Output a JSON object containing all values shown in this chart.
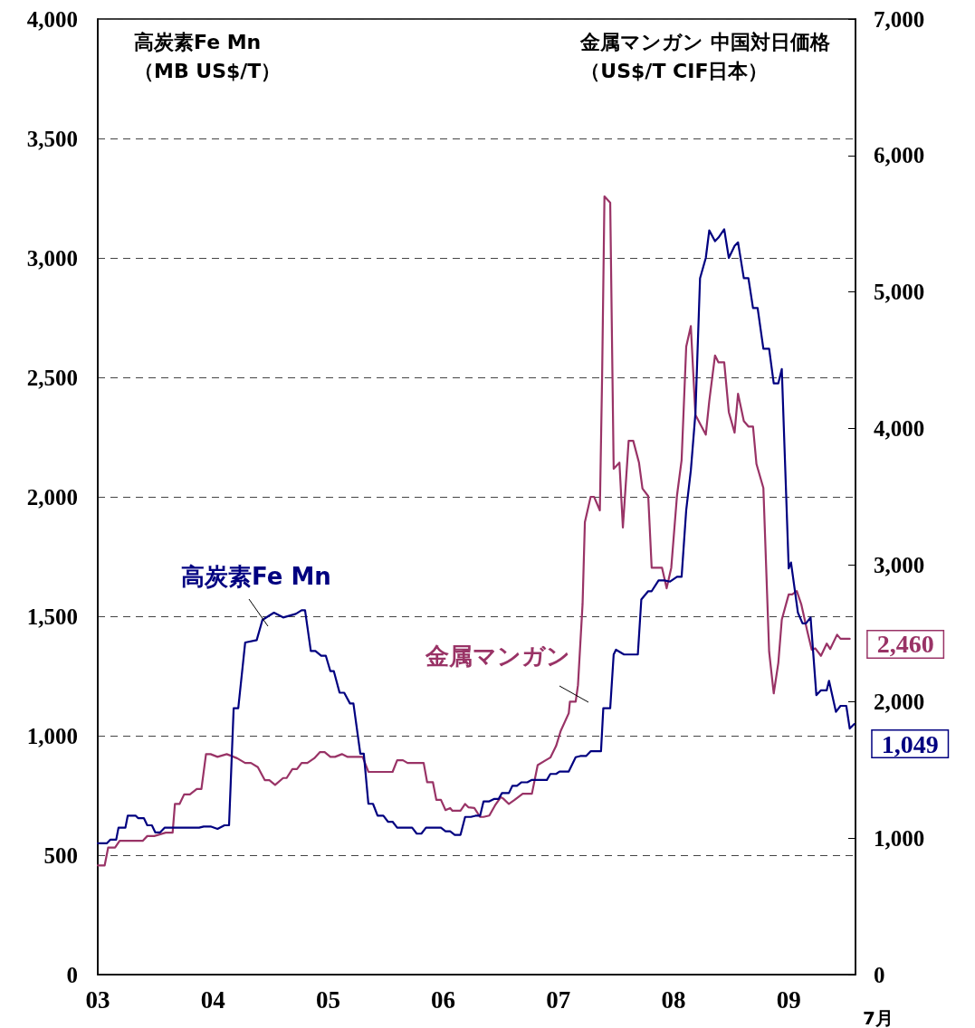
{
  "chart_data": {
    "type": "line",
    "ylabel": "高炭素Fe Mn（MB US$/T）",
    "y2label": "金属マンガン 中国対日価格（US$/T CIF日本）",
    "xlabel": "7月",
    "xlim": [
      2003,
      2009.58
    ],
    "xticks": [
      {
        "value": 2003,
        "label": "03"
      },
      {
        "value": 2004,
        "label": "04"
      },
      {
        "value": 2005,
        "label": "05"
      },
      {
        "value": 2006,
        "label": "06"
      },
      {
        "value": 2007,
        "label": "07"
      },
      {
        "value": 2008,
        "label": "08"
      },
      {
        "value": 2009,
        "label": "09"
      }
    ],
    "ylim": [
      0,
      4000
    ],
    "yticks": [
      0,
      {
        "value": 500,
        "label": "500"
      },
      {
        "value": 1000,
        "label": "1,000"
      },
      {
        "value": 1500,
        "label": "1,500"
      },
      {
        "value": 2000,
        "label": "2,000"
      },
      {
        "value": 2500,
        "label": "2,500"
      },
      {
        "value": 3000,
        "label": "3,000"
      },
      {
        "value": 3500,
        "label": "3,500"
      },
      {
        "value": 4000,
        "label": "4,000"
      }
    ],
    "y2lim": [
      0,
      7000
    ],
    "y2ticks": [
      0,
      {
        "value": 1000,
        "label": "1,000"
      },
      {
        "value": 2000,
        "label": "2,000"
      },
      {
        "value": 3000,
        "label": "3,000"
      },
      {
        "value": 4000,
        "label": "4,000"
      },
      {
        "value": 5000,
        "label": "5,000"
      },
      {
        "value": 6000,
        "label": "6,000"
      },
      {
        "value": 7000,
        "label": "7,000"
      }
    ],
    "grid": "y",
    "legend": false,
    "marker": "none",
    "line_style": "solid",
    "series": [
      {
        "name": "高炭素Fe Mn",
        "color": "#000080",
        "value_labels": [
          null,
          null,
          null,
          null,
          null,
          null,
          null,
          null,
          null,
          null,
          null,
          null,
          null,
          null,
          null,
          null,
          null,
          null,
          null,
          null,
          null,
          null,
          null,
          null,
          null,
          null,
          null,
          null,
          null,
          null,
          null,
          null,
          null,
          null,
          null,
          null,
          null,
          null,
          null,
          null,
          null,
          null,
          null,
          null,
          null,
          null,
          null,
          null,
          null,
          null,
          null,
          null,
          null,
          null,
          null,
          null,
          null,
          null,
          null,
          null,
          null,
          null,
          null,
          null,
          null,
          null,
          null,
          null,
          null,
          null,
          null,
          null,
          null,
          null,
          null,
          null,
          null,
          null,
          null,
          null,
          null,
          null,
          null,
          null,
          null,
          null,
          null,
          null,
          null,
          null,
          null,
          null,
          null,
          null,
          null,
          null,
          null,
          null,
          null,
          null,
          null,
          null,
          null,
          null,
          null,
          null,
          null,
          null,
          null,
          null,
          null,
          null,
          null,
          null,
          null,
          null,
          null,
          null,
          null,
          null,
          null,
          null,
          null,
          null,
          null,
          null,
          null,
          null,
          null,
          null,
          null,
          null,
          null,
          "1,049"
        ],
        "x": [
          2003.0,
          2003.08,
          2003.11,
          2003.16,
          2003.18,
          2003.24,
          2003.26,
          2003.33,
          2003.35,
          2003.4,
          2003.43,
          2003.47,
          2003.5,
          2003.54,
          2003.58,
          2003.88,
          2003.92,
          2003.98,
          2004.04,
          2004.1,
          2004.14,
          2004.18,
          2004.22,
          2004.28,
          2004.38,
          2004.43,
          2004.53,
          2004.61,
          2004.72,
          2004.77,
          2004.8,
          2004.85,
          2004.89,
          2004.94,
          2004.98,
          2005.02,
          2005.05,
          2005.1,
          2005.14,
          2005.19,
          2005.22,
          2005.28,
          2005.31,
          2005.35,
          2005.39,
          2005.43,
          2005.48,
          2005.52,
          2005.56,
          2005.6,
          2005.73,
          2005.77,
          2005.81,
          2005.85,
          2005.98,
          2006.02,
          2006.06,
          2006.1,
          2006.15,
          2006.19,
          2006.24,
          2006.28,
          2006.32,
          2006.35,
          2006.4,
          2006.44,
          2006.48,
          2006.51,
          2006.57,
          2006.6,
          2006.64,
          2006.68,
          2006.73,
          2006.77,
          2006.9,
          2006.93,
          2006.98,
          2007.01,
          2007.09,
          2007.15,
          2007.19,
          2007.24,
          2007.28,
          2007.37,
          2007.39,
          2007.45,
          2007.48,
          2007.5,
          2007.57,
          2007.69,
          2007.72,
          2007.78,
          2007.81,
          2007.87,
          2007.92,
          2007.97,
          2008.03,
          2008.07,
          2008.11,
          2008.15,
          2008.19,
          2008.23,
          2008.28,
          2008.31,
          2008.36,
          2008.39,
          2008.44,
          2008.48,
          2008.53,
          2008.56,
          2008.61,
          2008.65,
          2008.69,
          2008.73,
          2008.78,
          2008.83,
          2008.87,
          2008.91,
          2008.94,
          2009.0,
          2009.02,
          2009.08,
          2009.12,
          2009.15,
          2009.19,
          2009.24,
          2009.28,
          2009.33,
          2009.35,
          2009.41,
          2009.45,
          2009.5,
          2009.53,
          2009.57
        ],
        "values": [
          550,
          550,
          565,
          565,
          615,
          615,
          665,
          665,
          655,
          655,
          625,
          625,
          595,
          595,
          615,
          615,
          620,
          620,
          610,
          625,
          625,
          1115,
          1115,
          1390,
          1400,
          1485,
          1515,
          1495,
          1510,
          1525,
          1525,
          1355,
          1355,
          1335,
          1335,
          1270,
          1270,
          1180,
          1180,
          1135,
          1135,
          925,
          925,
          715,
          715,
          665,
          665,
          640,
          640,
          615,
          615,
          590,
          590,
          615,
          615,
          600,
          600,
          585,
          585,
          660,
          660,
          665,
          665,
          725,
          725,
          735,
          735,
          760,
          760,
          790,
          790,
          805,
          805,
          815,
          815,
          840,
          840,
          850,
          850,
          910,
          915,
          915,
          935,
          935,
          1115,
          1115,
          1340,
          1360,
          1340,
          1340,
          1570,
          1605,
          1605,
          1650,
          1650,
          1645,
          1665,
          1665,
          1945,
          2110,
          2350,
          2915,
          3000,
          3115,
          3070,
          3085,
          3120,
          3000,
          3050,
          3065,
          2915,
          2915,
          2790,
          2790,
          2620,
          2620,
          2475,
          2475,
          2535,
          1700,
          1725,
          1515,
          1470,
          1470,
          1495,
          1170,
          1190,
          1190,
          1230,
          1100,
          1125,
          1125,
          1030,
          1049
        ]
      },
      {
        "name": "金属マンガン",
        "color": "#993366",
        "axis": "y2",
        "value_labels": [
          null,
          null,
          null,
          null,
          null,
          null,
          null,
          null,
          null,
          null,
          null,
          null,
          null,
          null,
          null,
          null,
          null,
          null,
          null,
          null,
          null,
          null,
          null,
          null,
          null,
          null,
          null,
          null,
          null,
          null,
          null,
          null,
          null,
          null,
          null,
          null,
          null,
          null,
          null,
          null,
          null,
          null,
          null,
          null,
          null,
          null,
          null,
          null,
          null,
          null,
          null,
          null,
          null,
          null,
          null,
          null,
          null,
          null,
          null,
          null,
          null,
          null,
          null,
          null,
          null,
          null,
          null,
          null,
          null,
          null,
          null,
          null,
          null,
          null,
          null,
          null,
          null,
          null,
          null,
          null,
          null,
          null,
          null,
          null,
          null,
          null,
          null,
          null,
          null,
          null,
          null,
          null,
          null,
          null,
          null,
          null,
          null,
          null,
          null,
          null,
          null,
          null,
          null,
          null,
          null,
          null,
          null,
          null,
          null,
          null,
          null,
          null,
          null,
          null,
          null,
          null,
          null,
          null,
          null,
          null,
          null,
          null,
          null,
          null,
          null,
          null,
          null,
          null,
          null,
          null,
          null,
          null,
          "2,460"
        ],
        "x": [
          2003.0,
          2003.06,
          2003.09,
          2003.15,
          2003.19,
          2003.39,
          2003.43,
          2003.49,
          2003.53,
          2003.59,
          2003.65,
          2003.67,
          2003.71,
          2003.75,
          2003.8,
          2003.86,
          2003.9,
          2003.94,
          2003.98,
          2004.04,
          2004.12,
          2004.21,
          2004.28,
          2004.33,
          2004.39,
          2004.45,
          2004.49,
          2004.54,
          2004.61,
          2004.64,
          2004.69,
          2004.73,
          2004.77,
          2004.82,
          2004.88,
          2004.93,
          2004.97,
          2005.02,
          2005.06,
          2005.12,
          2005.17,
          2005.3,
          2005.35,
          2005.56,
          2005.6,
          2005.65,
          2005.69,
          2005.83,
          2005.86,
          2005.91,
          2005.94,
          2005.98,
          2006.02,
          2006.06,
          2006.08,
          2006.15,
          2006.19,
          2006.22,
          2006.27,
          2006.32,
          2006.35,
          2006.4,
          2006.45,
          2006.5,
          2006.52,
          2006.57,
          2006.62,
          2006.69,
          2006.77,
          2006.82,
          2006.89,
          2006.93,
          2006.98,
          2007.02,
          2007.09,
          2007.1,
          2007.15,
          2007.17,
          2007.21,
          2007.23,
          2007.28,
          2007.31,
          2007.36,
          2007.38,
          2007.4,
          2007.45,
          2007.48,
          2007.53,
          2007.56,
          2007.61,
          2007.65,
          2007.7,
          2007.73,
          2007.78,
          2007.81,
          2007.9,
          2007.94,
          2007.98,
          2008.03,
          2008.07,
          2008.11,
          2008.15,
          2008.19,
          2008.28,
          2008.31,
          2008.36,
          2008.39,
          2008.44,
          2008.48,
          2008.53,
          2008.56,
          2008.61,
          2008.65,
          2008.69,
          2008.72,
          2008.78,
          2008.83,
          2008.87,
          2008.91,
          2008.94,
          2009.0,
          2009.03,
          2009.07,
          2009.11,
          2009.16,
          2009.2,
          2009.23,
          2009.28,
          2009.33,
          2009.36,
          2009.42,
          2009.45,
          2009.53
        ],
        "values": [
          800,
          800,
          930,
          930,
          980,
          980,
          1015,
          1015,
          1025,
          1040,
          1040,
          1250,
          1250,
          1320,
          1320,
          1360,
          1360,
          1615,
          1615,
          1595,
          1615,
          1585,
          1550,
          1550,
          1520,
          1425,
          1425,
          1390,
          1440,
          1440,
          1505,
          1505,
          1550,
          1550,
          1585,
          1630,
          1630,
          1595,
          1595,
          1615,
          1595,
          1595,
          1485,
          1485,
          1570,
          1570,
          1550,
          1550,
          1410,
          1410,
          1280,
          1280,
          1205,
          1220,
          1200,
          1200,
          1250,
          1225,
          1220,
          1155,
          1155,
          1165,
          1240,
          1300,
          1290,
          1250,
          1280,
          1325,
          1325,
          1535,
          1570,
          1590,
          1675,
          1785,
          1915,
          2000,
          2000,
          2120,
          2715,
          3315,
          3500,
          3500,
          3400,
          4400,
          5700,
          5655,
          3705,
          3750,
          3275,
          3910,
          3910,
          3750,
          3560,
          3505,
          2980,
          2980,
          2830,
          2980,
          3510,
          3770,
          4600,
          4750,
          4100,
          3955,
          4200,
          4535,
          4485,
          4485,
          4120,
          3970,
          4255,
          4055,
          4015,
          4015,
          3740,
          3565,
          2365,
          2060,
          2285,
          2600,
          2785,
          2785,
          2810,
          2710,
          2520,
          2380,
          2390,
          2335,
          2425,
          2385,
          2490,
          2460,
          2460
        ]
      }
    ]
  }
}
